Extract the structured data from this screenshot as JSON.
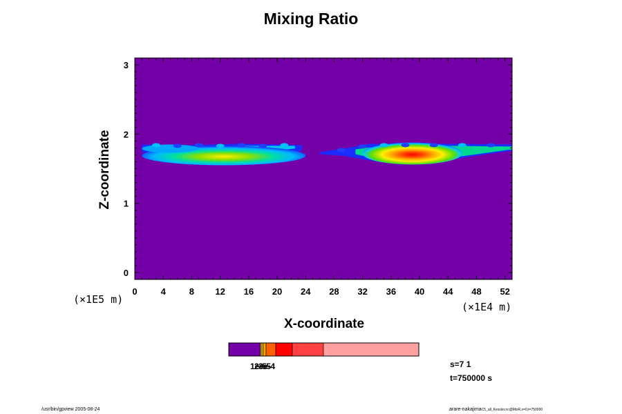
{
  "chart_data": {
    "type": "heatmap",
    "title": "Mixing Ratio",
    "xlabel": "X-coordinate",
    "ylabel": "Z-coordinate",
    "x_unit": "(×1E4 m)",
    "y_unit": "(×1E5 m)",
    "xlim": [
      0,
      53
    ],
    "ylim": [
      -0.1,
      3.1
    ],
    "x_ticks": [
      0,
      4,
      8,
      12,
      16,
      20,
      24,
      28,
      32,
      36,
      40,
      44,
      48,
      52
    ],
    "y_ticks": [
      0,
      1,
      2,
      3
    ],
    "background_color": "#7400a8",
    "layer_z_range": [
      1.6,
      1.85
    ],
    "cloud_regions": [
      {
        "x_start": 1,
        "x_end": 23.5,
        "peak_x": 12.5,
        "z_center": 1.78
      },
      {
        "x_start": 26,
        "x_end": 53,
        "peak_x": 40,
        "z_center": 1.72
      }
    ],
    "colorbar": {
      "colors": [
        "#7400a8",
        "#ffe000",
        "#ffa000",
        "#ff6000",
        "#ff0000",
        "#ff4040",
        "#ffa0a0"
      ],
      "tick_labels": [
        "1e-5",
        "2e-5",
        "3e-4"
      ]
    }
  },
  "annotations": {
    "step": "s=7 1",
    "time": "t=750000 s",
    "footer_left": "/usr/bin/gpview 2005-08-24",
    "footer_right_main": "arare-nakajima",
    "footer_right_small": "C5_all_Kessler.nc@MixR,x=0,t=750000"
  }
}
